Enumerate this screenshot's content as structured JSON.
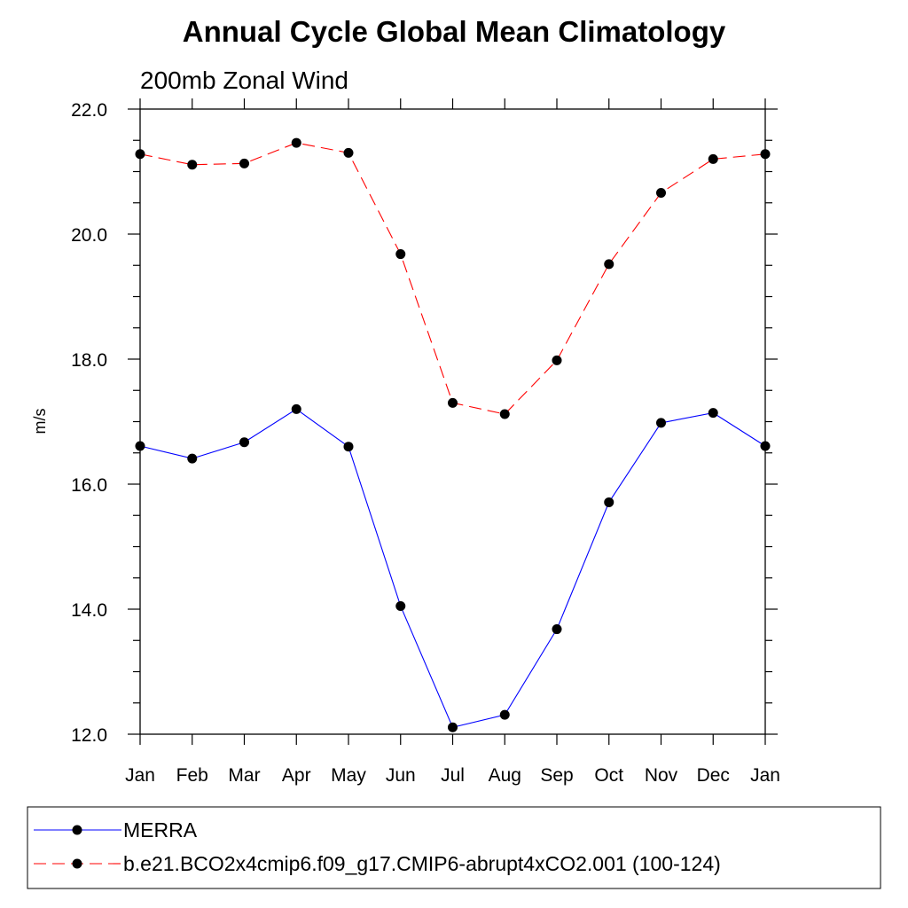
{
  "chart_data": {
    "type": "line",
    "title": "Annual Cycle Global Mean Climatology",
    "subtitle": "200mb Zonal Wind",
    "xlabel": "",
    "ylabel": "m/s",
    "categories": [
      "Jan",
      "Feb",
      "Mar",
      "Apr",
      "May",
      "Jun",
      "Jul",
      "Aug",
      "Sep",
      "Oct",
      "Nov",
      "Dec",
      "Jan"
    ],
    "ylim": [
      12.0,
      22.0
    ],
    "yticks": [
      "12.0",
      "14.0",
      "16.0",
      "18.0",
      "20.0",
      "22.0"
    ],
    "grid": false,
    "legend_position": "bottom",
    "series": [
      {
        "name": "MERRA",
        "color": "#0000ff",
        "line_style": "solid",
        "marker": "filled-circle",
        "values": [
          16.61,
          16.41,
          16.67,
          17.2,
          16.6,
          14.05,
          12.11,
          12.31,
          13.68,
          15.71,
          16.98,
          17.14,
          16.61
        ]
      },
      {
        "name": "b.e21.BCO2x4cmip6.f09_g17.CMIP6-abrupt4xCO2.001 (100-124)",
        "color": "#ff0000",
        "line_style": "dashed",
        "marker": "filled-circle",
        "values": [
          21.28,
          21.11,
          21.13,
          21.46,
          21.3,
          19.68,
          17.3,
          17.12,
          17.98,
          19.52,
          20.66,
          21.2,
          21.28
        ]
      }
    ]
  }
}
